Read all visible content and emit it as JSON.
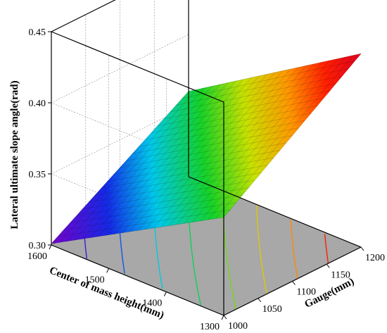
{
  "chart_data": {
    "type": "surface3d",
    "zlabel": "Lateral ultimate slope angle(rad)",
    "xlabel": "Gauge(mm)",
    "ylabel": "Center of mass height(mm)",
    "x_ticks": [
      "1000",
      "1050",
      "1100",
      "1150",
      "1200"
    ],
    "y_ticks": [
      "1300",
      "1400",
      "1500",
      "1600"
    ],
    "z_ticks": [
      "0.30",
      "0.35",
      "0.40",
      "0.45"
    ],
    "xlim": [
      1000,
      1200
    ],
    "ylim": [
      1300,
      1600
    ],
    "zlim": [
      0.3,
      0.45
    ],
    "grid": true,
    "colormap": "rainbow (violet-blue-cyan-green-yellow-red)",
    "floor_contours": true,
    "corner_values": [
      {
        "gauge": 1000,
        "height": 1600,
        "angle": 0.301
      },
      {
        "gauge": 1000,
        "height": 1300,
        "angle": 0.369
      },
      {
        "gauge": 1200,
        "height": 1600,
        "angle": 0.36
      },
      {
        "gauge": 1200,
        "height": 1300,
        "angle": 0.436
      }
    ]
  },
  "colors": {
    "floor": "#a8a8a8",
    "wall": "#ffffff",
    "grid": "#888888",
    "axis": "#000000"
  }
}
